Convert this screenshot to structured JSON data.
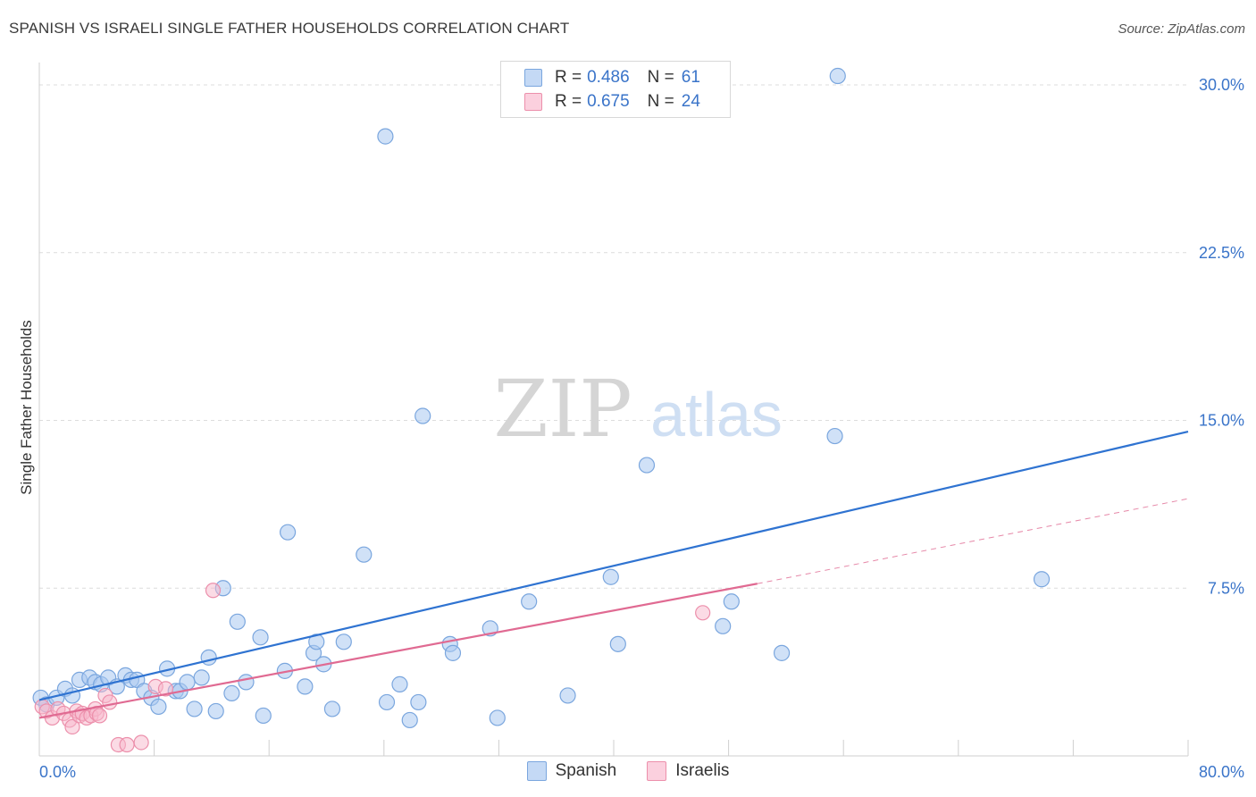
{
  "header": {
    "title": "SPANISH VS ISRAELI SINGLE FATHER HOUSEHOLDS CORRELATION CHART",
    "source": "Source: ZipAtlas.com"
  },
  "watermark": {
    "zip": "ZIP",
    "atlas": "atlas"
  },
  "legend_top": [
    {
      "r_label": "R =",
      "r_value": "0.486",
      "n_label": "N =",
      "n_value": "61"
    },
    {
      "r_label": "R =",
      "r_value": "0.675",
      "n_label": "N =",
      "n_value": "24"
    }
  ],
  "legend_bottom": [
    {
      "label": "Spanish"
    },
    {
      "label": "Israelis"
    }
  ],
  "colors": {
    "spanish_fill": "#a9c8f0",
    "spanish_stroke": "#7aa6de",
    "spanish_line": "#2f73d1",
    "israeli_fill": "#f7b8cb",
    "israeli_stroke": "#ec8fab",
    "israeli_line": "#e06a92",
    "tick_label": "#3a74c9",
    "grid": "#dcdcdc"
  },
  "chart_data": {
    "type": "scatter",
    "title": "SPANISH VS ISRAELI SINGLE FATHER HOUSEHOLDS CORRELATION CHART",
    "xlabel": "",
    "ylabel": "Single Father Households",
    "xlim": [
      0,
      80
    ],
    "ylim": [
      0,
      31
    ],
    "x_tick_labels": [
      "0.0%",
      "80.0%"
    ],
    "y_ticks": [
      7.5,
      15.0,
      22.5,
      30.0
    ],
    "y_tick_labels": [
      "7.5%",
      "15.0%",
      "22.5%",
      "30.0%"
    ],
    "series": [
      {
        "name": "Spanish",
        "r": 0.486,
        "n": 61,
        "trend": {
          "x": [
            0,
            80
          ],
          "y": [
            2.5,
            14.5
          ],
          "dashed_extension": false
        },
        "points": [
          [
            0.1,
            2.6
          ],
          [
            0.5,
            2.3
          ],
          [
            1.2,
            2.6
          ],
          [
            1.8,
            3.0
          ],
          [
            2.3,
            2.7
          ],
          [
            2.8,
            3.4
          ],
          [
            3.5,
            3.5
          ],
          [
            3.9,
            3.3
          ],
          [
            4.3,
            3.2
          ],
          [
            4.8,
            3.5
          ],
          [
            5.4,
            3.1
          ],
          [
            6.0,
            3.6
          ],
          [
            6.4,
            3.4
          ],
          [
            6.8,
            3.4
          ],
          [
            7.3,
            2.9
          ],
          [
            7.8,
            2.6
          ],
          [
            8.3,
            2.2
          ],
          [
            8.9,
            3.9
          ],
          [
            9.5,
            2.9
          ],
          [
            9.8,
            2.9
          ],
          [
            10.3,
            3.3
          ],
          [
            10.8,
            2.1
          ],
          [
            11.3,
            3.5
          ],
          [
            11.8,
            4.4
          ],
          [
            12.3,
            2.0
          ],
          [
            12.8,
            7.5
          ],
          [
            13.4,
            2.8
          ],
          [
            13.8,
            6.0
          ],
          [
            14.4,
            3.3
          ],
          [
            15.4,
            5.3
          ],
          [
            15.6,
            1.8
          ],
          [
            17.1,
            3.8
          ],
          [
            17.3,
            10.0
          ],
          [
            18.5,
            3.1
          ],
          [
            19.1,
            4.6
          ],
          [
            19.3,
            5.1
          ],
          [
            19.8,
            4.1
          ],
          [
            20.4,
            2.1
          ],
          [
            21.2,
            5.1
          ],
          [
            22.6,
            9.0
          ],
          [
            24.1,
            27.7
          ],
          [
            24.2,
            2.4
          ],
          [
            25.1,
            3.2
          ],
          [
            25.8,
            1.6
          ],
          [
            26.4,
            2.4
          ],
          [
            26.7,
            15.2
          ],
          [
            28.6,
            5.0
          ],
          [
            28.8,
            4.6
          ],
          [
            31.4,
            5.7
          ],
          [
            31.9,
            1.7
          ],
          [
            34.1,
            6.9
          ],
          [
            36.8,
            2.7
          ],
          [
            39.8,
            8.0
          ],
          [
            40.3,
            5.0
          ],
          [
            42.3,
            13.0
          ],
          [
            47.6,
            5.8
          ],
          [
            48.2,
            6.9
          ],
          [
            51.7,
            4.6
          ],
          [
            55.4,
            14.3
          ],
          [
            55.6,
            30.4
          ],
          [
            69.8,
            7.9
          ]
        ]
      },
      {
        "name": "Israelis",
        "r": 0.675,
        "n": 24,
        "trend": {
          "x": [
            0,
            50
          ],
          "y": [
            1.7,
            7.7
          ],
          "dashed_extension": {
            "x": [
              50,
              80
            ],
            "y": [
              7.7,
              11.5
            ]
          }
        },
        "points": [
          [
            0.2,
            2.2
          ],
          [
            0.5,
            2.0
          ],
          [
            0.9,
            1.7
          ],
          [
            1.3,
            2.1
          ],
          [
            1.7,
            1.9
          ],
          [
            2.1,
            1.6
          ],
          [
            2.3,
            1.3
          ],
          [
            2.6,
            2.0
          ],
          [
            2.8,
            1.8
          ],
          [
            3.0,
            1.9
          ],
          [
            3.3,
            1.7
          ],
          [
            3.6,
            1.8
          ],
          [
            3.9,
            2.1
          ],
          [
            4.0,
            1.9
          ],
          [
            4.2,
            1.8
          ],
          [
            4.6,
            2.7
          ],
          [
            4.9,
            2.4
          ],
          [
            5.5,
            0.5
          ],
          [
            6.1,
            0.5
          ],
          [
            7.1,
            0.6
          ],
          [
            8.1,
            3.1
          ],
          [
            8.8,
            3.0
          ],
          [
            12.1,
            7.4
          ],
          [
            46.2,
            6.4
          ]
        ]
      }
    ],
    "legend_position": "top-center"
  }
}
